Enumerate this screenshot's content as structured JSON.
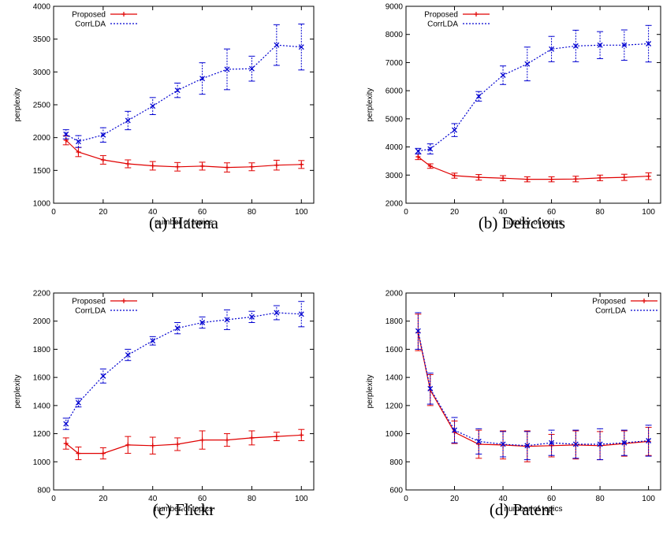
{
  "chart_data": [
    {
      "type": "line",
      "caption": "(a) Hatena",
      "xlabel": "number of topics",
      "ylabel": "perplexity",
      "xlim": [
        0,
        105
      ],
      "ylim": [
        1000,
        4000
      ],
      "xticks": [
        0,
        20,
        40,
        60,
        80,
        100
      ],
      "yticks": [
        1000,
        1500,
        2000,
        2500,
        3000,
        3500,
        4000
      ],
      "legend_position": "top-left",
      "x": [
        5,
        10,
        20,
        30,
        40,
        50,
        60,
        70,
        80,
        90,
        100
      ],
      "series": [
        {
          "name": "Proposed",
          "color": "#e00000",
          "style": "solid",
          "marker": "plus",
          "values": [
            1960,
            1780,
            1660,
            1600,
            1570,
            1555,
            1565,
            1545,
            1555,
            1580,
            1590
          ],
          "errors": [
            70,
            70,
            65,
            60,
            65,
            65,
            60,
            70,
            60,
            75,
            60
          ]
        },
        {
          "name": "CorrLDA",
          "color": "#0000d0",
          "style": "dotted",
          "marker": "cross",
          "values": [
            2050,
            1940,
            2040,
            2260,
            2480,
            2720,
            2900,
            3040,
            3050,
            3410,
            3380
          ],
          "errors": [
            70,
            90,
            110,
            140,
            130,
            110,
            240,
            310,
            190,
            310,
            350
          ]
        }
      ]
    },
    {
      "type": "line",
      "caption": "(b) Delicious",
      "xlabel": "number of topics",
      "ylabel": "perplexity",
      "xlim": [
        0,
        105
      ],
      "ylim": [
        2000,
        9000
      ],
      "xticks": [
        0,
        20,
        40,
        60,
        80,
        100
      ],
      "yticks": [
        2000,
        3000,
        4000,
        5000,
        6000,
        7000,
        8000,
        9000
      ],
      "legend_position": "top-left",
      "x": [
        5,
        10,
        20,
        30,
        40,
        50,
        60,
        70,
        80,
        90,
        100
      ],
      "series": [
        {
          "name": "Proposed",
          "color": "#e00000",
          "style": "solid",
          "marker": "plus",
          "values": [
            3650,
            3320,
            2980,
            2920,
            2890,
            2850,
            2850,
            2860,
            2900,
            2920,
            2960
          ],
          "errors": [
            100,
            80,
            90,
            100,
            90,
            90,
            90,
            100,
            100,
            110,
            120
          ]
        },
        {
          "name": "CorrLDA",
          "color": "#0000d0",
          "style": "dotted",
          "marker": "cross",
          "values": [
            3850,
            3930,
            4600,
            5800,
            6550,
            6950,
            7480,
            7590,
            7620,
            7620,
            7670
          ],
          "errors": [
            100,
            180,
            230,
            170,
            330,
            600,
            450,
            560,
            480,
            540,
            650
          ]
        }
      ]
    },
    {
      "type": "line",
      "caption": "(c) Flickr",
      "xlabel": "number of topics",
      "ylabel": "perplexity",
      "xlim": [
        0,
        105
      ],
      "ylim": [
        800,
        2200
      ],
      "xticks": [
        0,
        20,
        40,
        60,
        80,
        100
      ],
      "yticks": [
        800,
        1000,
        1200,
        1400,
        1600,
        1800,
        2000,
        2200
      ],
      "legend_position": "top-left",
      "x": [
        5,
        10,
        20,
        30,
        40,
        50,
        60,
        70,
        80,
        90,
        100
      ],
      "series": [
        {
          "name": "Proposed",
          "color": "#e00000",
          "style": "solid",
          "marker": "plus",
          "values": [
            1130,
            1060,
            1060,
            1120,
            1115,
            1125,
            1155,
            1155,
            1170,
            1180,
            1190
          ],
          "errors": [
            40,
            45,
            40,
            60,
            60,
            45,
            65,
            45,
            50,
            30,
            40
          ]
        },
        {
          "name": "CorrLDA",
          "color": "#0000d0",
          "style": "dotted",
          "marker": "cross",
          "values": [
            1270,
            1420,
            1610,
            1760,
            1860,
            1950,
            1990,
            2010,
            2030,
            2060,
            2050
          ],
          "errors": [
            40,
            30,
            50,
            40,
            30,
            40,
            40,
            70,
            40,
            50,
            90
          ]
        }
      ]
    },
    {
      "type": "line",
      "caption": "(d) Patent",
      "xlabel": "number of topics",
      "ylabel": "perplexity",
      "xlim": [
        0,
        105
      ],
      "ylim": [
        600,
        2000
      ],
      "xticks": [
        0,
        20,
        40,
        60,
        80,
        100
      ],
      "yticks": [
        600,
        800,
        1000,
        1200,
        1400,
        1600,
        1800,
        2000
      ],
      "legend_position": "top-right",
      "x": [
        5,
        10,
        20,
        30,
        40,
        50,
        60,
        70,
        80,
        90,
        100
      ],
      "series": [
        {
          "name": "Proposed",
          "color": "#e00000",
          "style": "solid",
          "marker": "plus",
          "values": [
            1720,
            1310,
            1010,
            925,
            920,
            910,
            915,
            920,
            915,
            930,
            945
          ],
          "errors": [
            130,
            110,
            80,
            100,
            100,
            110,
            80,
            100,
            100,
            90,
            100
          ]
        },
        {
          "name": "CorrLDA",
          "color": "#0000d0",
          "style": "dotted",
          "marker": "cross",
          "values": [
            1730,
            1320,
            1025,
            945,
            925,
            915,
            935,
            925,
            925,
            935,
            950
          ],
          "errors": [
            130,
            110,
            90,
            90,
            90,
            100,
            90,
            100,
            110,
            90,
            110
          ]
        }
      ]
    }
  ]
}
